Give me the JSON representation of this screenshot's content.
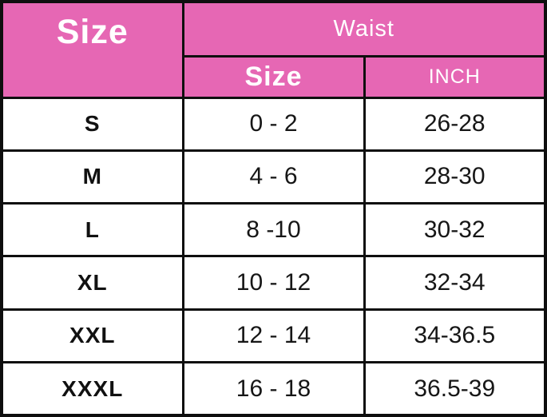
{
  "colors": {
    "header_bg": "#e667b4",
    "header_text": "#ffffff",
    "border": "#0e0e0e",
    "body_text": "#161616",
    "body_bg": "#ffffff"
  },
  "chart_data": {
    "type": "table",
    "header": {
      "corner": "Size",
      "group": "Waist",
      "sub": [
        "Size",
        "INCH"
      ]
    },
    "rows": [
      [
        "S",
        "0 - 2",
        "26-28"
      ],
      [
        "M",
        "4 - 6",
        "28-30"
      ],
      [
        "L",
        "8 -10",
        "30-32"
      ],
      [
        "XL",
        "10 - 12",
        "32-34"
      ],
      [
        "XXL",
        "12 - 14",
        "34-36.5"
      ],
      [
        "XXXL",
        "16 - 18",
        "36.5-39"
      ]
    ]
  }
}
